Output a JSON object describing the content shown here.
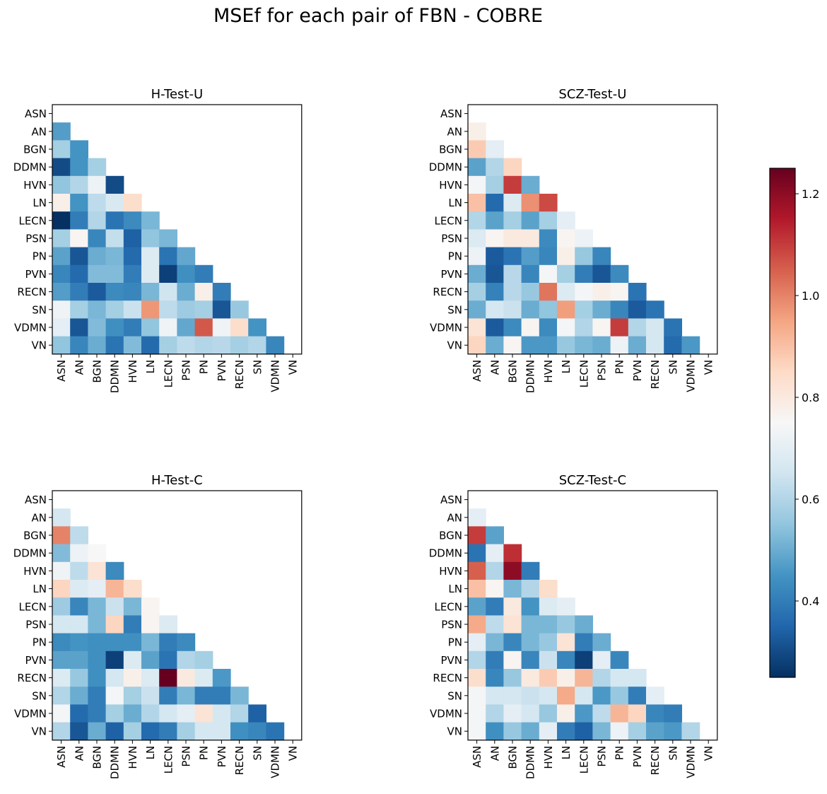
{
  "figure": {
    "title": "MSEf for each pair of FBN - COBRE"
  },
  "chart_data": {
    "type": "heatmap",
    "title": "MSEf for each pair of FBN - COBRE",
    "labels": [
      "ASN",
      "AN",
      "BGN",
      "DDMN",
      "HVN",
      "LN",
      "LECN",
      "PSN",
      "PN",
      "PVN",
      "RECN",
      "SN",
      "VDMN",
      "VN"
    ],
    "colorbar": {
      "vmin": 0.25,
      "vmax": 1.25,
      "ticks": [
        "0.4",
        "0.6",
        "0.8",
        "1.0",
        "1.2"
      ],
      "tick_values": [
        0.4,
        0.6,
        0.8,
        1.0,
        1.2
      ],
      "colormap": "RdBu_r"
    },
    "panels": [
      {
        "name": "H-Test-U",
        "title": "H-Test-U",
        "matrix": [
          [
            0.47
          ],
          [
            0.58,
            0.45
          ],
          [
            0.3,
            0.45,
            0.58
          ],
          [
            0.55,
            0.6,
            0.72,
            0.3
          ],
          [
            0.78,
            0.45,
            0.62,
            0.67,
            0.84
          ],
          [
            0.25,
            0.4,
            0.6,
            0.38,
            0.43,
            0.52
          ],
          [
            0.58,
            0.76,
            0.42,
            0.63,
            0.34,
            0.55,
            0.52
          ],
          [
            0.48,
            0.32,
            0.5,
            0.52,
            0.36,
            0.68,
            0.38,
            0.49
          ],
          [
            0.42,
            0.36,
            0.53,
            0.53,
            0.4,
            0.68,
            0.28,
            0.44,
            0.4
          ],
          [
            0.47,
            0.4,
            0.33,
            0.43,
            0.42,
            0.52,
            0.65,
            0.5,
            0.78,
            0.4
          ],
          [
            0.73,
            0.58,
            0.52,
            0.58,
            0.64,
            0.97,
            0.62,
            0.57,
            0.58,
            0.32,
            0.56
          ],
          [
            0.7,
            0.32,
            0.53,
            0.44,
            0.4,
            0.55,
            0.73,
            0.49,
            1.06,
            0.73,
            0.84,
            0.45
          ],
          [
            0.55,
            0.42,
            0.5,
            0.38,
            0.53,
            0.36,
            0.58,
            0.62,
            0.6,
            0.61,
            0.58,
            0.6,
            0.42
          ]
        ]
      },
      {
        "name": "SCZ-Test-U",
        "title": "SCZ-Test-U",
        "matrix": [
          [
            0.78
          ],
          [
            0.88,
            0.7
          ],
          [
            0.48,
            0.6,
            0.86
          ],
          [
            0.74,
            0.58,
            1.1,
            0.5
          ],
          [
            0.9,
            0.36,
            0.68,
            0.98,
            1.08
          ],
          [
            0.6,
            0.48,
            0.58,
            0.48,
            0.58,
            0.7
          ],
          [
            0.68,
            0.76,
            0.8,
            0.8,
            0.43,
            0.76,
            0.72
          ],
          [
            0.72,
            0.33,
            0.38,
            0.47,
            0.42,
            0.78,
            0.56,
            0.42
          ],
          [
            0.5,
            0.32,
            0.61,
            0.42,
            0.74,
            0.58,
            0.4,
            0.32,
            0.43
          ],
          [
            0.58,
            0.41,
            0.61,
            0.56,
            1.02,
            0.68,
            0.74,
            0.78,
            0.76,
            0.38
          ],
          [
            0.5,
            0.66,
            0.64,
            0.5,
            0.55,
            0.96,
            0.58,
            0.5,
            0.42,
            0.33,
            0.38
          ],
          [
            0.82,
            0.33,
            0.43,
            0.76,
            0.43,
            0.74,
            0.6,
            0.76,
            1.1,
            0.6,
            0.66,
            0.38
          ],
          [
            0.86,
            0.5,
            0.76,
            0.46,
            0.46,
            0.56,
            0.52,
            0.5,
            0.72,
            0.5,
            0.66,
            0.36,
            0.46
          ]
        ]
      },
      {
        "name": "H-Test-C",
        "title": "H-Test-C",
        "matrix": [
          [
            0.66
          ],
          [
            1.0,
            0.62
          ],
          [
            0.53,
            0.72,
            0.75
          ],
          [
            0.73,
            0.62,
            0.82,
            0.43
          ],
          [
            0.86,
            0.68,
            0.7,
            0.92,
            0.84
          ],
          [
            0.57,
            0.42,
            0.52,
            0.64,
            0.52,
            0.76
          ],
          [
            0.66,
            0.66,
            0.52,
            0.86,
            0.4,
            0.76,
            0.68
          ],
          [
            0.43,
            0.45,
            0.44,
            0.44,
            0.44,
            0.52,
            0.4,
            0.43
          ],
          [
            0.48,
            0.48,
            0.44,
            0.28,
            0.68,
            0.48,
            0.38,
            0.6,
            0.58
          ],
          [
            0.68,
            0.56,
            0.44,
            0.66,
            0.78,
            0.68,
            1.25,
            0.8,
            0.68,
            0.46
          ],
          [
            0.6,
            0.5,
            0.4,
            0.74,
            0.58,
            0.64,
            0.4,
            0.52,
            0.4,
            0.4,
            0.52
          ],
          [
            0.74,
            0.36,
            0.4,
            0.58,
            0.5,
            0.6,
            0.66,
            0.7,
            0.82,
            0.66,
            0.6,
            0.34
          ],
          [
            0.6,
            0.32,
            0.5,
            0.34,
            0.58,
            0.36,
            0.4,
            0.58,
            0.66,
            0.66,
            0.44,
            0.42,
            0.38
          ]
        ]
      },
      {
        "name": "SCZ-Test-C",
        "title": "SCZ-Test-C",
        "matrix": [
          [
            0.7
          ],
          [
            1.1,
            0.48
          ],
          [
            0.38,
            0.7,
            1.12
          ],
          [
            1.05,
            0.6,
            1.2,
            0.4
          ],
          [
            0.9,
            0.76,
            0.52,
            0.6,
            0.84
          ],
          [
            0.48,
            0.4,
            0.8,
            0.45,
            0.68,
            0.7
          ],
          [
            0.94,
            0.62,
            0.82,
            0.52,
            0.52,
            0.56,
            0.5
          ],
          [
            0.7,
            0.52,
            0.42,
            0.52,
            0.56,
            0.82,
            0.4,
            0.5
          ],
          [
            0.6,
            0.4,
            0.76,
            0.42,
            0.64,
            0.42,
            0.28,
            0.7,
            0.42
          ],
          [
            0.84,
            0.42,
            0.56,
            0.8,
            0.88,
            0.78,
            0.92,
            0.6,
            0.66,
            0.66
          ],
          [
            0.74,
            0.66,
            0.66,
            0.64,
            0.66,
            0.94,
            0.66,
            0.46,
            0.56,
            0.4,
            0.7
          ],
          [
            0.74,
            0.6,
            0.7,
            0.66,
            0.56,
            0.78,
            0.46,
            0.62,
            0.92,
            0.86,
            0.42,
            0.4
          ],
          [
            0.74,
            0.44,
            0.56,
            0.5,
            0.7,
            0.4,
            0.34,
            0.52,
            0.72,
            0.58,
            0.48,
            0.46,
            0.6
          ]
        ]
      }
    ]
  }
}
